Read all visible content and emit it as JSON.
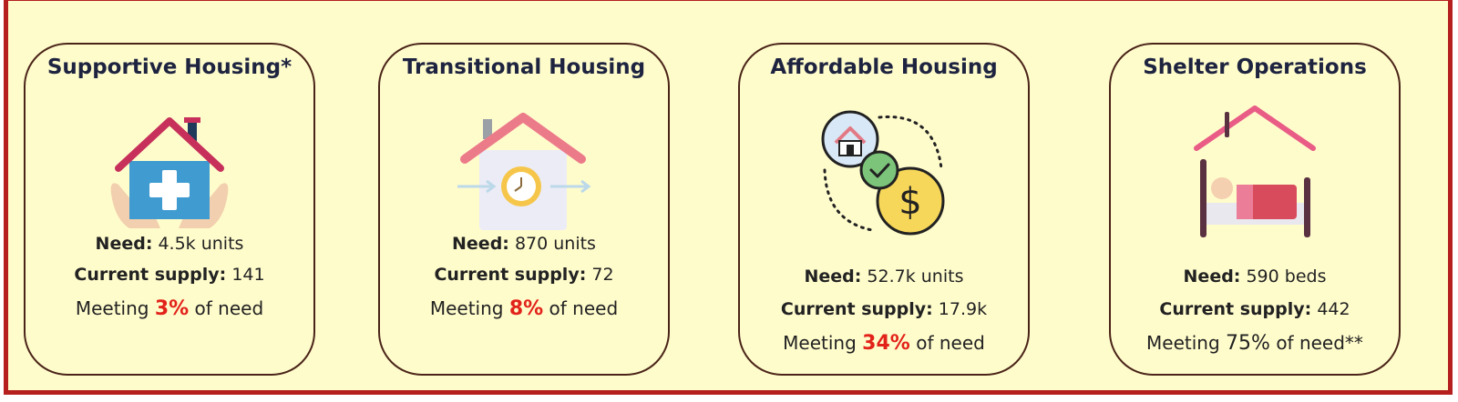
{
  "cards": [
    {
      "title": "Supportive Housing*",
      "need_label": "Need:",
      "need_value": "4.5k units",
      "supply_label": "Current supply:",
      "supply_value": "141",
      "meeting_prefix": "Meeting",
      "meeting_pct": "3%",
      "meeting_suffix": "of need",
      "icon": "house-with-medical-cross-in-hands-icon"
    },
    {
      "title": "Transitional Housing",
      "need_label": "Need:",
      "need_value": "870 units",
      "supply_label": "Current supply:",
      "supply_value": "72",
      "meeting_prefix": "Meeting",
      "meeting_pct": "8%",
      "meeting_suffix": "of need",
      "icon": "house-with-clock-icon"
    },
    {
      "title": "Affordable Housing",
      "need_label": "Need:",
      "need_value": "52.7k units",
      "supply_label": "Current supply:",
      "supply_value": "17.9k",
      "meeting_prefix": "Meeting",
      "meeting_pct": "34%",
      "meeting_suffix": "of need",
      "icon": "house-check-dollar-icon"
    },
    {
      "title": "Shelter Operations",
      "need_label": "Need:",
      "need_value": "590 beds",
      "supply_label": "Current supply:",
      "supply_value": "442",
      "meeting_prefix": "Meeting",
      "meeting_pct": "75%",
      "meeting_suffix": "of need**",
      "icon": "shelter-bed-icon"
    }
  ],
  "colors": {
    "frame_border": "#b5201e",
    "background": "#fffccc",
    "card_border": "#4a2418",
    "highlight_red": "#e2231a"
  }
}
